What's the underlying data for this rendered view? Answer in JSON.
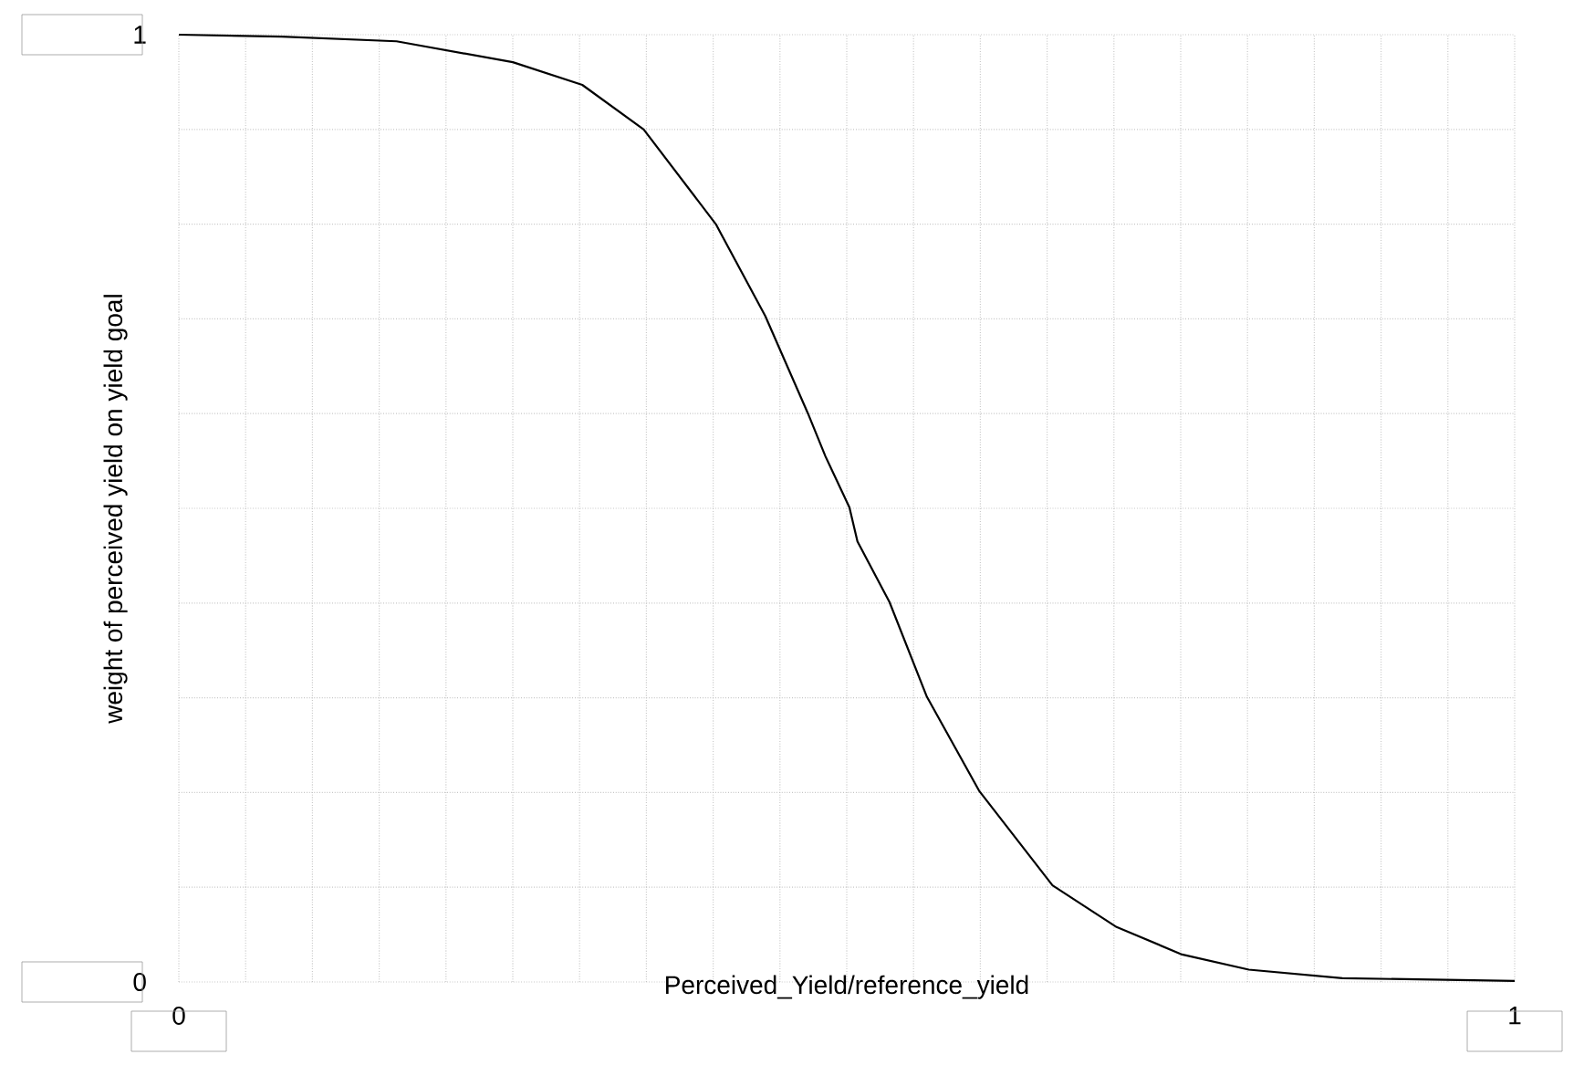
{
  "chart_data": {
    "type": "line",
    "xlabel": "Perceived_Yield/reference_yield",
    "ylabel": "weight of perceived yield on yield goal",
    "xlim": [
      0,
      1
    ],
    "ylim": [
      0,
      1
    ],
    "xticks": [
      0,
      {
        "value": 0.05,
        "label": null
      },
      {
        "value": 0.1,
        "label": null
      },
      {
        "value": 0.15,
        "label": null
      },
      {
        "value": 0.2,
        "label": null
      },
      {
        "value": 0.25,
        "label": null
      },
      {
        "value": 0.3,
        "label": null
      },
      {
        "value": 0.35,
        "label": null
      },
      {
        "value": 0.4,
        "label": null
      },
      {
        "value": 0.45,
        "label": null
      },
      {
        "value": 0.5,
        "label": null
      },
      {
        "value": 0.55,
        "label": null
      },
      {
        "value": 0.6,
        "label": null
      },
      {
        "value": 0.65,
        "label": null
      },
      {
        "value": 0.7,
        "label": null
      },
      {
        "value": 0.75,
        "label": null
      },
      {
        "value": 0.8,
        "label": null
      },
      {
        "value": 0.85,
        "label": null
      },
      {
        "value": 0.9,
        "label": null
      },
      {
        "value": 0.95,
        "label": null
      },
      1
    ],
    "yticks": [
      0,
      {
        "value": 0.1,
        "label": null
      },
      {
        "value": 0.2,
        "label": null
      },
      {
        "value": 0.3,
        "label": null
      },
      {
        "value": 0.4,
        "label": null
      },
      {
        "value": 0.5,
        "label": null
      },
      {
        "value": 0.6,
        "label": null
      },
      {
        "value": 0.7,
        "label": null
      },
      {
        "value": 0.8,
        "label": null
      },
      {
        "value": 0.9,
        "label": null
      },
      1
    ],
    "grid": true,
    "line_style": "solid",
    "series": [
      {
        "color": "#000000",
        "x": [
          0,
          0.077,
          0.163,
          0.25,
          0.302,
          0.348,
          0.402,
          0.439,
          0.471,
          0.484,
          0.502,
          0.508,
          0.532,
          0.56,
          0.599,
          0.654,
          0.702,
          0.751,
          0.801,
          0.871,
          1.0
        ],
        "values": [
          1.0,
          0.998,
          0.993,
          0.971,
          0.947,
          0.9,
          0.8,
          0.703,
          0.6,
          0.555,
          0.501,
          0.465,
          0.401,
          0.301,
          0.202,
          0.102,
          0.058,
          0.029,
          0.013,
          0.004,
          0.001
        ]
      }
    ]
  }
}
